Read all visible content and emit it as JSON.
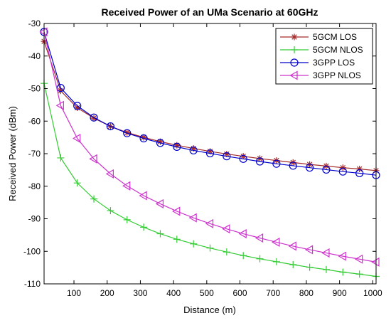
{
  "chart_data": {
    "type": "line",
    "title": "Received Power of an UMa Scenario at 60GHz",
    "xlabel": "Distance (m)",
    "ylabel": "Received Power (dBm)",
    "xlim": [
      10,
      1010
    ],
    "ylim": [
      -110,
      -30
    ],
    "xticks": [
      100,
      200,
      300,
      400,
      500,
      600,
      700,
      800,
      900,
      1000
    ],
    "yticks": [
      -110,
      -100,
      -90,
      -80,
      -70,
      -60,
      -50,
      -40,
      -30
    ],
    "xtick_labels": [
      "100",
      "200",
      "300",
      "400",
      "500",
      "600",
      "700",
      "800",
      "900",
      "1000"
    ],
    "ytick_labels": [
      "-110",
      "-100",
      "-90",
      "-80",
      "-70",
      "-60",
      "-50",
      "-40",
      "-30"
    ],
    "grid": false,
    "legend_position": "top-right",
    "x": [
      10,
      60,
      110,
      160,
      210,
      260,
      310,
      360,
      410,
      460,
      510,
      560,
      610,
      660,
      710,
      760,
      810,
      860,
      910,
      960,
      1010
    ],
    "series": [
      {
        "name": "5GCM LOS",
        "color": "#a52a2a",
        "marker": "asterisk",
        "values": [
          -35.5,
          -50.7,
          -55.9,
          -59.1,
          -61.6,
          -63.5,
          -65.0,
          -66.3,
          -67.4,
          -68.4,
          -69.3,
          -70.1,
          -70.8,
          -71.5,
          -72.1,
          -72.7,
          -73.3,
          -73.8,
          -74.3,
          -74.7,
          -75.2
        ]
      },
      {
        "name": "5GCM NLOS",
        "color": "#33cc33",
        "marker": "plus",
        "values": [
          -48.4,
          -71.3,
          -79.0,
          -83.9,
          -87.5,
          -90.3,
          -92.6,
          -94.6,
          -96.3,
          -97.7,
          -99.0,
          -100.2,
          -101.3,
          -102.3,
          -103.2,
          -104.1,
          -104.9,
          -105.6,
          -106.4,
          -107.0,
          -107.7
        ]
      },
      {
        "name": "3GPP LOS",
        "color": "#0000cc",
        "marker": "circle",
        "values": [
          -32.6,
          -49.8,
          -55.3,
          -58.9,
          -61.6,
          -63.7,
          -65.3,
          -66.7,
          -67.9,
          -69.0,
          -69.9,
          -70.8,
          -71.6,
          -72.4,
          -73.1,
          -73.7,
          -74.3,
          -74.9,
          -75.5,
          -76.0,
          -76.6
        ]
      },
      {
        "name": "3GPP NLOS",
        "color": "#cc33cc",
        "marker": "triangle-left",
        "values": [
          -32.6,
          -55.2,
          -65.3,
          -71.6,
          -76.2,
          -79.9,
          -82.9,
          -85.4,
          -87.7,
          -89.7,
          -91.5,
          -93.1,
          -94.6,
          -95.9,
          -97.2,
          -98.4,
          -99.5,
          -100.5,
          -101.5,
          -102.4,
          -103.3
        ]
      }
    ]
  }
}
